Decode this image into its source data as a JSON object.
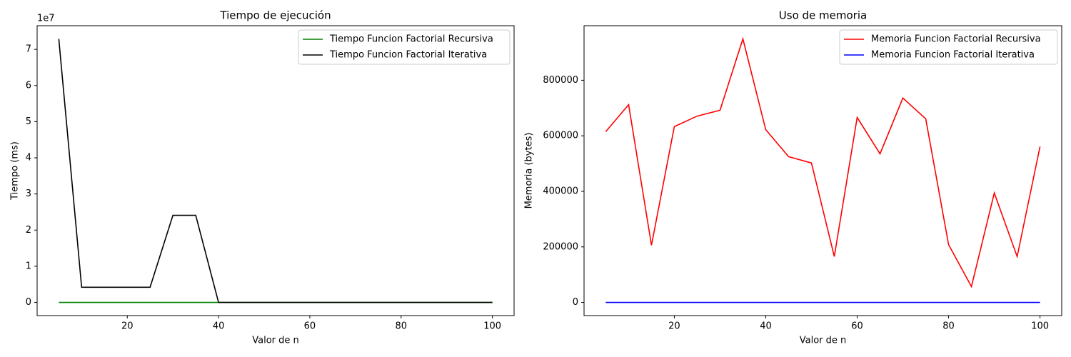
{
  "chart_data": [
    {
      "type": "line",
      "title": "Tiempo de ejecución",
      "x_label": "Valor de n",
      "y_label": "Tiempo (ms)",
      "offset_text": "1e7",
      "x": [
        5,
        10,
        15,
        20,
        25,
        30,
        35,
        40,
        45,
        50,
        55,
        60,
        65,
        70,
        75,
        80,
        85,
        90,
        95,
        100
      ],
      "series": [
        {
          "name": "Tiempo Funcion Factorial Recursiva",
          "color": "#008000",
          "values": [
            0,
            0,
            0,
            0,
            0,
            0,
            0,
            0,
            0,
            0,
            0,
            0,
            0,
            0,
            0,
            0,
            0,
            0,
            0,
            0
          ]
        },
        {
          "name": "Tiempo Funcion Factorial Iterativa",
          "color": "#000000",
          "values": [
            72900000,
            4200000,
            4200000,
            4200000,
            4200000,
            24100000,
            24100000,
            0,
            0,
            0,
            0,
            0,
            0,
            0,
            0,
            0,
            0,
            0,
            0,
            0
          ]
        }
      ],
      "xlim": [
        0.25,
        104.75
      ],
      "xticks": [
        20,
        40,
        60,
        80,
        100
      ],
      "ylim": [
        -3645000,
        76545000
      ],
      "yticks": [
        {
          "value": 0,
          "label": "0"
        },
        {
          "value": 10000000,
          "label": "1"
        },
        {
          "value": 20000000,
          "label": "2"
        },
        {
          "value": 30000000,
          "label": "3"
        },
        {
          "value": 40000000,
          "label": "4"
        },
        {
          "value": 50000000,
          "label": "5"
        },
        {
          "value": 60000000,
          "label": "6"
        },
        {
          "value": 70000000,
          "label": "7"
        }
      ],
      "legend": "upper right"
    },
    {
      "type": "line",
      "title": "Uso de memoria",
      "x_label": "Valor de n",
      "y_label": "Memoria (bytes)",
      "x": [
        5,
        10,
        15,
        20,
        25,
        30,
        35,
        40,
        45,
        50,
        55,
        60,
        65,
        70,
        75,
        80,
        85,
        90,
        95,
        100
      ],
      "series": [
        {
          "name": "Memoria Funcion Factorial Recursiva",
          "color": "#ff0000",
          "values": [
            615000,
            712000,
            206000,
            633000,
            671000,
            692000,
            949000,
            622000,
            525000,
            502000,
            165000,
            666000,
            535000,
            736000,
            661000,
            208000,
            57000,
            394000,
            165000,
            561000
          ]
        },
        {
          "name": "Memoria Funcion Factorial Iterativa",
          "color": "#0000ff",
          "values": [
            0,
            0,
            0,
            0,
            0,
            0,
            0,
            0,
            0,
            0,
            0,
            0,
            0,
            0,
            0,
            0,
            0,
            0,
            0,
            0
          ]
        }
      ],
      "xlim": [
        0.25,
        104.75
      ],
      "xticks": [
        20,
        40,
        60,
        80,
        100
      ],
      "ylim": [
        -47450,
        996450
      ],
      "yticks": [
        0,
        200000,
        400000,
        600000,
        800000
      ],
      "legend": "upper right"
    }
  ]
}
